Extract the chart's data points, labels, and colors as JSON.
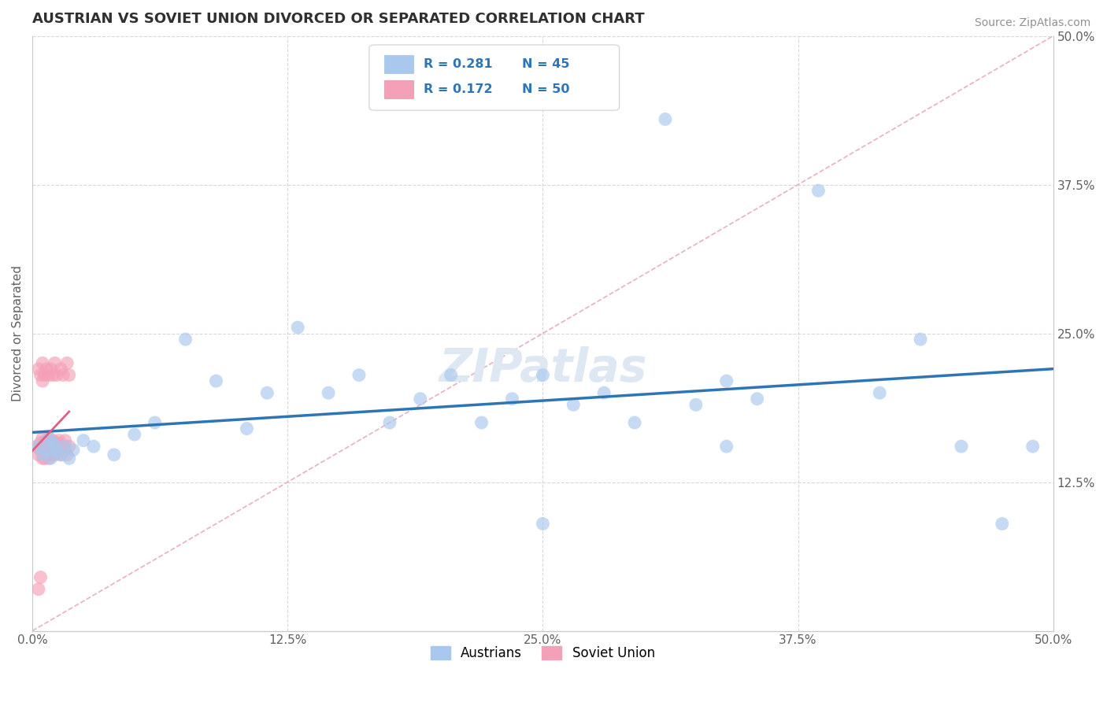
{
  "title": "AUSTRIAN VS SOVIET UNION DIVORCED OR SEPARATED CORRELATION CHART",
  "source": "Source: ZipAtlas.com",
  "ylabel": "Divorced or Separated",
  "xlim": [
    0.0,
    0.5
  ],
  "ylim": [
    0.0,
    0.5
  ],
  "xtick_labels": [
    "0.0%",
    "12.5%",
    "25.0%",
    "37.5%",
    "50.0%"
  ],
  "xtick_positions": [
    0.0,
    0.125,
    0.25,
    0.375,
    0.5
  ],
  "ytick_labels": [
    "12.5%",
    "25.0%",
    "37.5%",
    "50.0%"
  ],
  "ytick_positions": [
    0.125,
    0.25,
    0.375,
    0.5
  ],
  "blue_color": "#A8C8EE",
  "pink_color": "#F4A0B8",
  "blue_line_color": "#2E75B6",
  "pink_line_color": "#E06080",
  "diag_line_color": "#E0C0C8",
  "title_color": "#303030",
  "source_color": "#909090",
  "grid_color": "#D8D8D8",
  "austrians_x": [
    0.003,
    0.005,
    0.006,
    0.007,
    0.008,
    0.009,
    0.01,
    0.011,
    0.012,
    0.013,
    0.014,
    0.015,
    0.016,
    0.017,
    0.018,
    0.02,
    0.022,
    0.025,
    0.03,
    0.035,
    0.04,
    0.045,
    0.05,
    0.058,
    0.065,
    0.075,
    0.085,
    0.095,
    0.11,
    0.125,
    0.14,
    0.155,
    0.165,
    0.18,
    0.195,
    0.21,
    0.225,
    0.245,
    0.26,
    0.28,
    0.31,
    0.34,
    0.37,
    0.455,
    0.48
  ],
  "austrians_y": [
    0.155,
    0.15,
    0.158,
    0.162,
    0.145,
    0.152,
    0.148,
    0.155,
    0.16,
    0.15,
    0.145,
    0.158,
    0.152,
    0.148,
    0.155,
    0.145,
    0.155,
    0.158,
    0.16,
    0.15,
    0.155,
    0.148,
    0.165,
    0.2,
    0.175,
    0.245,
    0.21,
    0.17,
    0.195,
    0.215,
    0.185,
    0.19,
    0.2,
    0.215,
    0.175,
    0.195,
    0.215,
    0.19,
    0.215,
    0.19,
    0.43,
    0.37,
    0.245,
    0.155,
    0.09
  ],
  "soviet_x": [
    0.002,
    0.003,
    0.004,
    0.004,
    0.005,
    0.005,
    0.005,
    0.006,
    0.006,
    0.006,
    0.007,
    0.007,
    0.007,
    0.007,
    0.008,
    0.008,
    0.008,
    0.009,
    0.009,
    0.009,
    0.01,
    0.01,
    0.01,
    0.01,
    0.011,
    0.011,
    0.011,
    0.012,
    0.012,
    0.012,
    0.013,
    0.013,
    0.014,
    0.014,
    0.015,
    0.015,
    0.016,
    0.016,
    0.017,
    0.018,
    0.004,
    0.005,
    0.006,
    0.007,
    0.008,
    0.009,
    0.01,
    0.012,
    0.014,
    0.016
  ],
  "soviet_y": [
    0.155,
    0.148,
    0.152,
    0.158,
    0.162,
    0.145,
    0.155,
    0.15,
    0.158,
    0.145,
    0.152,
    0.16,
    0.148,
    0.155,
    0.162,
    0.15,
    0.145,
    0.158,
    0.152,
    0.148,
    0.155,
    0.16,
    0.148,
    0.152,
    0.158,
    0.145,
    0.155,
    0.15,
    0.158,
    0.145,
    0.152,
    0.16,
    0.148,
    0.155,
    0.158,
    0.145,
    0.152,
    0.16,
    0.148,
    0.155,
    0.22,
    0.215,
    0.21,
    0.225,
    0.22,
    0.215,
    0.21,
    0.22,
    0.215,
    0.21
  ]
}
